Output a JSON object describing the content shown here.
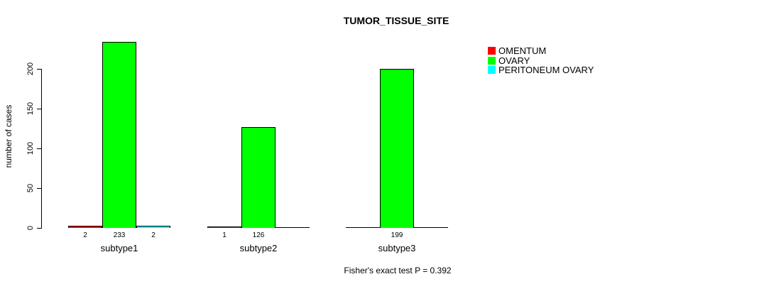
{
  "title": "TUMOR_TISSUE_SITE",
  "footer": "Fisher's exact test P = 0.392",
  "y_axis": {
    "label": "number of cases",
    "ticks": [
      0,
      50,
      100,
      150,
      200
    ]
  },
  "legend": {
    "items": [
      {
        "label": "OMENTUM",
        "color": "#FF0000"
      },
      {
        "label": "OVARY",
        "color": "#00FF00"
      },
      {
        "label": "PERITONEUM OVARY",
        "color": "#00FFFF"
      }
    ]
  },
  "chart_data": {
    "type": "bar",
    "title": "TUMOR_TISSUE_SITE",
    "categories": [
      "subtype1",
      "subtype2",
      "subtype3"
    ],
    "series": [
      {
        "name": "OMENTUM",
        "color": "#FF0000",
        "values": [
          2,
          1,
          0
        ]
      },
      {
        "name": "OVARY",
        "color": "#00FF00",
        "values": [
          233,
          126,
          199
        ]
      },
      {
        "name": "PERITONEUM OVARY",
        "color": "#00FFFF",
        "values": [
          2,
          0,
          0
        ]
      }
    ],
    "bar_value_labels_shown_for_nonzero": true,
    "xlabel": "",
    "ylabel": "number of cases",
    "ylim": [
      0,
      233
    ],
    "axis_ticks": [
      0,
      50,
      100,
      150,
      200
    ],
    "grid": false,
    "legend_position": "right",
    "annotation": "Fisher's exact test P = 0.392"
  }
}
